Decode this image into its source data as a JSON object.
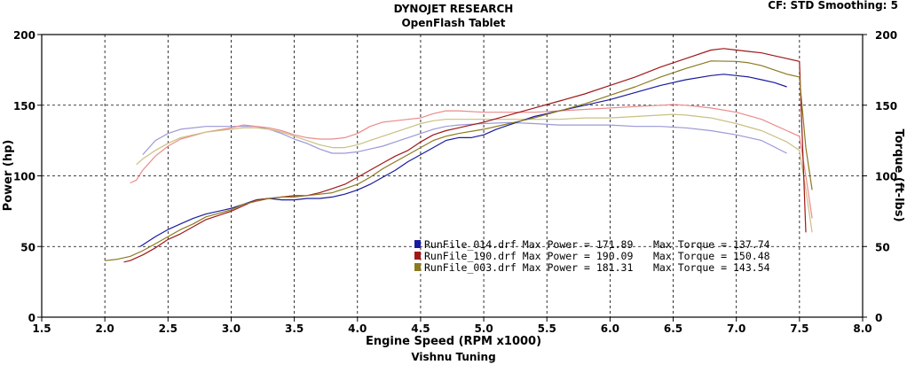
{
  "header": {
    "title": "DYNOJET RESEARCH",
    "subtitle": "OpenFlash Tablet",
    "correction": "CF: STD  Smoothing: 5",
    "footer": "Vishnu Tuning"
  },
  "chart_data": {
    "type": "line",
    "xlabel": "Engine Speed (RPM x1000)",
    "ylabel": "Power (hp)",
    "y2label": "Torque (ft-lbs)",
    "xlim": [
      1.5,
      8.0
    ],
    "ylim": [
      0,
      200
    ],
    "y2lim": [
      0,
      200
    ],
    "x_ticks": [
      "1.5",
      "2.0",
      "2.5",
      "3.0",
      "3.5",
      "4.0",
      "4.5",
      "5.0",
      "5.5",
      "6.0",
      "6.5",
      "7.0",
      "7.5",
      "8.0"
    ],
    "y_ticks": [
      "0",
      "50",
      "100",
      "150",
      "200"
    ],
    "y2_ticks": [
      "0",
      "50",
      "100",
      "150",
      "200"
    ],
    "grid": true,
    "legend_position": "center-right",
    "series": [
      {
        "name": "RunFile_014.drf",
        "legend_text": "RunFile_014.drf Max Power = 171.89",
        "torque_text": "Max Torque = 137.74",
        "color": "#1a1aa0",
        "torque_color": "#9a98d8",
        "power": [
          [
            2.28,
            50
          ],
          [
            2.4,
            57
          ],
          [
            2.5,
            62
          ],
          [
            2.6,
            66
          ],
          [
            2.7,
            70
          ],
          [
            2.8,
            73
          ],
          [
            3.0,
            77
          ],
          [
            3.1,
            80
          ],
          [
            3.2,
            83
          ],
          [
            3.3,
            84
          ],
          [
            3.4,
            83
          ],
          [
            3.5,
            83
          ],
          [
            3.6,
            84
          ],
          [
            3.7,
            84
          ],
          [
            3.8,
            85
          ],
          [
            3.9,
            87
          ],
          [
            4.0,
            90
          ],
          [
            4.1,
            94
          ],
          [
            4.2,
            99
          ],
          [
            4.3,
            104
          ],
          [
            4.4,
            110
          ],
          [
            4.5,
            115
          ],
          [
            4.6,
            120
          ],
          [
            4.7,
            125
          ],
          [
            4.8,
            127
          ],
          [
            4.9,
            127
          ],
          [
            5.0,
            129
          ],
          [
            5.1,
            133
          ],
          [
            5.2,
            136
          ],
          [
            5.4,
            142
          ],
          [
            5.6,
            146
          ],
          [
            5.8,
            150
          ],
          [
            6.0,
            154
          ],
          [
            6.2,
            159
          ],
          [
            6.4,
            164
          ],
          [
            6.6,
            168
          ],
          [
            6.8,
            171
          ],
          [
            6.9,
            171.89
          ],
          [
            7.0,
            171
          ],
          [
            7.1,
            170
          ],
          [
            7.2,
            168
          ],
          [
            7.3,
            166
          ],
          [
            7.4,
            163
          ]
        ],
        "torque": [
          [
            2.3,
            115
          ],
          [
            2.4,
            125
          ],
          [
            2.5,
            130
          ],
          [
            2.6,
            133
          ],
          [
            2.8,
            135
          ],
          [
            3.0,
            135
          ],
          [
            3.2,
            135
          ],
          [
            3.3,
            133
          ],
          [
            3.4,
            130
          ],
          [
            3.5,
            126
          ],
          [
            3.6,
            123
          ],
          [
            3.7,
            119
          ],
          [
            3.8,
            116
          ],
          [
            3.9,
            116
          ],
          [
            4.0,
            117
          ],
          [
            4.1,
            119
          ],
          [
            4.2,
            121
          ],
          [
            4.3,
            124
          ],
          [
            4.4,
            127
          ],
          [
            4.5,
            130
          ],
          [
            4.6,
            133
          ],
          [
            4.7,
            135
          ],
          [
            4.8,
            136
          ],
          [
            5.0,
            137
          ],
          [
            5.2,
            137.74
          ],
          [
            5.4,
            137
          ],
          [
            5.6,
            136
          ],
          [
            5.8,
            136
          ],
          [
            6.0,
            136
          ],
          [
            6.2,
            135
          ],
          [
            6.4,
            135
          ],
          [
            6.6,
            134
          ],
          [
            6.8,
            132
          ],
          [
            7.0,
            129
          ],
          [
            7.2,
            125
          ],
          [
            7.4,
            116
          ]
        ]
      },
      {
        "name": "RunFile_190.drf",
        "legend_text": "RunFile_190.drf Max Power = 190.09",
        "torque_text": "Max Torque = 150.48",
        "color": "#a0181a",
        "torque_color": "#ec8a8a",
        "power": [
          [
            2.15,
            39
          ],
          [
            2.2,
            40
          ],
          [
            2.3,
            44
          ],
          [
            2.4,
            49
          ],
          [
            2.5,
            55
          ],
          [
            2.6,
            59
          ],
          [
            2.7,
            64
          ],
          [
            2.8,
            69
          ],
          [
            3.0,
            75
          ],
          [
            3.1,
            79
          ],
          [
            3.2,
            83
          ],
          [
            3.3,
            84
          ],
          [
            3.4,
            85
          ],
          [
            3.5,
            86
          ],
          [
            3.6,
            86
          ],
          [
            3.7,
            88
          ],
          [
            3.8,
            91
          ],
          [
            3.9,
            94
          ],
          [
            4.0,
            99
          ],
          [
            4.1,
            104
          ],
          [
            4.2,
            109
          ],
          [
            4.3,
            114
          ],
          [
            4.4,
            118
          ],
          [
            4.5,
            124
          ],
          [
            4.6,
            129
          ],
          [
            4.7,
            132
          ],
          [
            4.8,
            134
          ],
          [
            5.0,
            138
          ],
          [
            5.2,
            143
          ],
          [
            5.4,
            148
          ],
          [
            5.6,
            153
          ],
          [
            5.8,
            158
          ],
          [
            6.0,
            164
          ],
          [
            6.2,
            170
          ],
          [
            6.4,
            177
          ],
          [
            6.6,
            183
          ],
          [
            6.8,
            189
          ],
          [
            6.9,
            190.09
          ],
          [
            7.0,
            189
          ],
          [
            7.1,
            188
          ],
          [
            7.2,
            187
          ],
          [
            7.3,
            185
          ],
          [
            7.4,
            183
          ],
          [
            7.5,
            181
          ],
          [
            7.55,
            60
          ]
        ],
        "torque": [
          [
            2.2,
            95
          ],
          [
            2.25,
            97
          ],
          [
            2.3,
            104
          ],
          [
            2.4,
            114
          ],
          [
            2.5,
            121
          ],
          [
            2.6,
            126
          ],
          [
            2.8,
            131
          ],
          [
            3.0,
            134
          ],
          [
            3.1,
            136
          ],
          [
            3.2,
            135
          ],
          [
            3.3,
            134
          ],
          [
            3.4,
            132
          ],
          [
            3.5,
            129
          ],
          [
            3.6,
            127
          ],
          [
            3.7,
            126
          ],
          [
            3.8,
            126
          ],
          [
            3.9,
            127
          ],
          [
            4.0,
            130
          ],
          [
            4.1,
            135
          ],
          [
            4.2,
            138
          ],
          [
            4.3,
            139
          ],
          [
            4.4,
            140
          ],
          [
            4.5,
            141
          ],
          [
            4.6,
            144
          ],
          [
            4.7,
            146
          ],
          [
            4.8,
            146
          ],
          [
            5.0,
            145
          ],
          [
            5.2,
            145
          ],
          [
            5.4,
            145
          ],
          [
            5.6,
            146
          ],
          [
            5.8,
            147
          ],
          [
            6.0,
            148
          ],
          [
            6.2,
            149
          ],
          [
            6.4,
            150
          ],
          [
            6.5,
            150.48
          ],
          [
            6.6,
            150
          ],
          [
            6.8,
            148
          ],
          [
            7.0,
            145
          ],
          [
            7.2,
            140
          ],
          [
            7.4,
            132
          ],
          [
            7.5,
            128
          ],
          [
            7.55,
            100
          ],
          [
            7.6,
            70
          ]
        ]
      },
      {
        "name": "RunFile_003.drf",
        "legend_text": "RunFile_003.drf Max Power = 181.31",
        "torque_text": "Max Torque = 143.54",
        "color": "#8a7a20",
        "torque_color": "#cabf82",
        "power": [
          [
            2.0,
            40
          ],
          [
            2.1,
            41
          ],
          [
            2.2,
            43
          ],
          [
            2.3,
            47
          ],
          [
            2.4,
            52
          ],
          [
            2.5,
            57
          ],
          [
            2.6,
            62
          ],
          [
            2.7,
            66
          ],
          [
            2.8,
            71
          ],
          [
            3.0,
            76
          ],
          [
            3.1,
            80
          ],
          [
            3.2,
            82
          ],
          [
            3.3,
            84
          ],
          [
            3.4,
            85
          ],
          [
            3.5,
            85
          ],
          [
            3.6,
            86
          ],
          [
            3.7,
            87
          ],
          [
            3.8,
            88
          ],
          [
            3.9,
            91
          ],
          [
            4.0,
            94
          ],
          [
            4.1,
            99
          ],
          [
            4.2,
            105
          ],
          [
            4.3,
            110
          ],
          [
            4.4,
            115
          ],
          [
            4.5,
            120
          ],
          [
            4.6,
            125
          ],
          [
            4.7,
            128
          ],
          [
            4.8,
            130
          ],
          [
            5.0,
            133
          ],
          [
            5.2,
            137
          ],
          [
            5.4,
            141
          ],
          [
            5.6,
            146
          ],
          [
            5.8,
            151
          ],
          [
            6.0,
            157
          ],
          [
            6.2,
            163
          ],
          [
            6.4,
            170
          ],
          [
            6.6,
            176
          ],
          [
            6.8,
            181.31
          ],
          [
            7.0,
            181
          ],
          [
            7.1,
            180
          ],
          [
            7.2,
            178
          ],
          [
            7.3,
            175
          ],
          [
            7.4,
            172
          ],
          [
            7.5,
            170
          ],
          [
            7.55,
            120
          ],
          [
            7.6,
            90
          ]
        ],
        "torque": [
          [
            2.25,
            108
          ],
          [
            2.3,
            112
          ],
          [
            2.4,
            118
          ],
          [
            2.5,
            123
          ],
          [
            2.6,
            127
          ],
          [
            2.8,
            131
          ],
          [
            3.0,
            133
          ],
          [
            3.1,
            134
          ],
          [
            3.2,
            134
          ],
          [
            3.3,
            133
          ],
          [
            3.4,
            131
          ],
          [
            3.5,
            128
          ],
          [
            3.6,
            125
          ],
          [
            3.7,
            122
          ],
          [
            3.8,
            120
          ],
          [
            3.9,
            120
          ],
          [
            4.0,
            122
          ],
          [
            4.1,
            125
          ],
          [
            4.2,
            128
          ],
          [
            4.3,
            131
          ],
          [
            4.4,
            134
          ],
          [
            4.5,
            137
          ],
          [
            4.6,
            139
          ],
          [
            4.7,
            140
          ],
          [
            4.8,
            140
          ],
          [
            5.0,
            140
          ],
          [
            5.2,
            140
          ],
          [
            5.4,
            140
          ],
          [
            5.6,
            140
          ],
          [
            5.8,
            141
          ],
          [
            6.0,
            141
          ],
          [
            6.2,
            142
          ],
          [
            6.4,
            143
          ],
          [
            6.5,
            143.54
          ],
          [
            6.6,
            143
          ],
          [
            6.8,
            141
          ],
          [
            7.0,
            137
          ],
          [
            7.2,
            132
          ],
          [
            7.4,
            124
          ],
          [
            7.5,
            118
          ],
          [
            7.55,
            90
          ],
          [
            7.6,
            60
          ]
        ]
      }
    ]
  }
}
